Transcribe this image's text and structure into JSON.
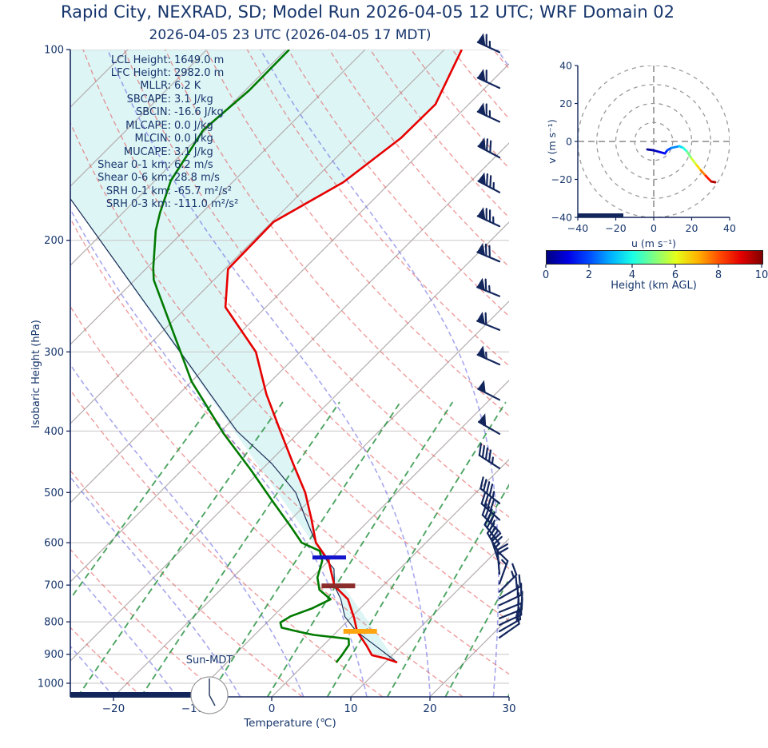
{
  "title": "Rapid City, NEXRAD, SD; Model Run 2026-04-05 12 UTC; WRF Domain 02",
  "subtitle": "2026-04-05 23 UTC  (2026-04-05 17 MDT)",
  "colors": {
    "text_navy": "#16356b",
    "barb_navy": "#13265c",
    "temperature": "#e60000",
    "dewpoint": "#007a00",
    "parcel": "#1b2c55",
    "cin_shade": "#def5f6",
    "isotherm": "#b5aeae",
    "gridline": "#c9c5c5",
    "dry_adiabat": "rgba(226,74,74,0.55)",
    "moist_adiabat": "rgba(95,95,224,0.55)",
    "mixing_line": "rgba(34,142,60,0.8)",
    "el_bar": "#1414cc",
    "lfc_bar": "#8b2c2c",
    "lcl_bar": "#ffa510"
  },
  "chart_data": {
    "type": "line",
    "skewt": {
      "xlabel": "Temperature (℃)",
      "ylabel": "Isobaric Height (hPa)",
      "sun_label": "Sun-MDT",
      "temp_ticks": [
        -20,
        -10,
        0,
        10,
        20,
        30
      ],
      "pressure_ticks": [
        100,
        200,
        300,
        400,
        500,
        600,
        700,
        800,
        900,
        1000
      ],
      "xlim": [
        -25.5,
        30
      ],
      "plim": [
        100,
        1050
      ],
      "stats": [
        {
          "label": "LCL Height:",
          "value": "1649.0 m"
        },
        {
          "label": "LFC Height:",
          "value": "2982.0 m"
        },
        {
          "label": "MLLR:",
          "value": "6.2 K"
        },
        {
          "label": "SBCAPE:",
          "value": "3.1 J/kg"
        },
        {
          "label": "SBCIN:",
          "value": "-16.6 J/kg"
        },
        {
          "label": "MLCAPE:",
          "value": "0.0 J/kg"
        },
        {
          "label": "MLCIN:",
          "value": "0.0 J/kg"
        },
        {
          "label": "MUCAPE:",
          "value": "3.1 J/kg"
        },
        {
          "label": "Shear 0-1 km:",
          "value": "6.2 m/s"
        },
        {
          "label": "Shear 0-6 km:",
          "value": "28.8 m/s"
        },
        {
          "label": "SRH 0-1 km:",
          "value": "-65.7 m²/s²"
        },
        {
          "label": "SRH 0-3 km:",
          "value": "-111.0 m²/s²"
        }
      ],
      "temperature_profile": [
        [
          100,
          -57.8
        ],
        [
          122,
          -54.2
        ],
        [
          138,
          -54.3
        ],
        [
          162,
          -56.0
        ],
        [
          187,
          -59.8
        ],
        [
          222,
          -59.6
        ],
        [
          255,
          -55.1
        ],
        [
          300,
          -45.6
        ],
        [
          350,
          -38.9
        ],
        [
          400,
          -32.5
        ],
        [
          450,
          -26.8
        ],
        [
          500,
          -21.6
        ],
        [
          550,
          -17.5
        ],
        [
          600,
          -13.9
        ],
        [
          641,
          -10.0
        ],
        [
          702,
          -6.1
        ],
        [
          737,
          -2.7
        ],
        [
          788,
          0.4
        ],
        [
          828,
          2.5
        ],
        [
          872,
          5.5
        ],
        [
          903,
          7.4
        ],
        [
          913,
          9.4
        ],
        [
          927,
          11.5
        ]
      ],
      "dewpoint_profile": [
        [
          100,
          -79.6
        ],
        [
          116,
          -79.5
        ],
        [
          134,
          -80.3
        ],
        [
          161,
          -78.0
        ],
        [
          181,
          -75.3
        ],
        [
          193,
          -73.6
        ],
        [
          221,
          -69.2
        ],
        [
          231,
          -67.6
        ],
        [
          334,
          -50.0
        ],
        [
          404,
          -39.3
        ],
        [
          460,
          -31.4
        ],
        [
          518,
          -24.4
        ],
        [
          566,
          -19.1
        ],
        [
          600,
          -15.7
        ],
        [
          618,
          -12.4
        ],
        [
          641,
          -10.8
        ],
        [
          681,
          -9.3
        ],
        [
          712,
          -7.5
        ],
        [
          737,
          -4.9
        ],
        [
          762,
          -6.1
        ],
        [
          784,
          -7.8
        ],
        [
          802,
          -8.3
        ],
        [
          817,
          -7.5
        ],
        [
          828,
          -5.1
        ],
        [
          839,
          -2.5
        ],
        [
          851,
          2.4
        ],
        [
          870,
          3.2
        ],
        [
          903,
          3.6
        ],
        [
          927,
          3.8
        ]
      ],
      "parcel_profile": [
        [
          927,
          11.5
        ],
        [
          872,
          6.6
        ],
        [
          828,
          2.4
        ],
        [
          785,
          -0.9
        ],
        [
          737,
          -3.6
        ],
        [
          702,
          -6.1
        ],
        [
          660,
          -8.3
        ],
        [
          641,
          -10.2
        ],
        [
          600,
          -13.9
        ],
        [
          550,
          -18.2
        ],
        [
          500,
          -22.8
        ],
        [
          450,
          -29.5
        ],
        [
          400,
          -38.0
        ],
        [
          350,
          -46.0
        ],
        [
          319,
          -51.5
        ],
        [
          172,
          -88.4
        ]
      ],
      "levels": [
        {
          "name": "EL",
          "pressure": 634,
          "temp": -10.3,
          "color_key": "el_bar"
        },
        {
          "name": "LFC",
          "pressure": 702,
          "temp": -5.6,
          "color_key": "lfc_bar"
        },
        {
          "name": "LCL",
          "pressure": 828,
          "temp": 2.9,
          "color_key": "lcl_bar"
        }
      ],
      "wind_barbs": [
        [
          101,
          65,
          295
        ],
        [
          115,
          60,
          295
        ],
        [
          130,
          65,
          295
        ],
        [
          148,
          70,
          298
        ],
        [
          168,
          75,
          298
        ],
        [
          190,
          75,
          295
        ],
        [
          216,
          70,
          293
        ],
        [
          245,
          65,
          292
        ],
        [
          277,
          60,
          292
        ],
        [
          314,
          55,
          294
        ],
        [
          357,
          50,
          297
        ],
        [
          404,
          50,
          300
        ],
        [
          458,
          45,
          303
        ],
        [
          520,
          45,
          308
        ],
        [
          552,
          40,
          312
        ],
        [
          577,
          40,
          315
        ],
        [
          602,
          35,
          322
        ],
        [
          625,
          30,
          330
        ],
        [
          648,
          25,
          342
        ],
        [
          672,
          20,
          355
        ],
        [
          696,
          18,
          20
        ],
        [
          717,
          18,
          45
        ],
        [
          735,
          20,
          60
        ],
        [
          753,
          22,
          65
        ],
        [
          772,
          22,
          68
        ],
        [
          790,
          20,
          68
        ],
        [
          809,
          18,
          65
        ],
        [
          828,
          15,
          60
        ],
        [
          847,
          12,
          55
        ]
      ],
      "surface_pressure": 927
    },
    "hodograph": {
      "xlabel": "u (m s⁻¹)",
      "ylabel": "v (m s⁻¹)",
      "u_ticks": [
        -40,
        -20,
        0,
        20,
        40
      ],
      "v_ticks": [
        -40,
        -20,
        0,
        20,
        40
      ],
      "ring_radii": [
        10,
        20,
        30,
        40
      ],
      "bar": {
        "u_from": -40,
        "u_to": -16
      },
      "trace": [
        [
          -3.4,
          -4.2,
          0.0
        ],
        [
          -0.4,
          -4.6,
          0.4
        ],
        [
          2.9,
          -5.5,
          0.8
        ],
        [
          5.9,
          -6.3,
          1.2
        ],
        [
          7.2,
          -4.6,
          1.7
        ],
        [
          9.3,
          -3.4,
          2.2
        ],
        [
          13.5,
          -2.5,
          3.0
        ],
        [
          15.6,
          -3.4,
          3.8
        ],
        [
          17.7,
          -5.5,
          4.5
        ],
        [
          19.8,
          -8.8,
          5.3
        ],
        [
          22.7,
          -12.6,
          6.2
        ],
        [
          24.8,
          -15.2,
          7.0
        ],
        [
          27.4,
          -18.1,
          8.0
        ],
        [
          30.3,
          -21.1,
          9.0
        ],
        [
          32.4,
          -21.5,
          10.0
        ]
      ]
    },
    "colorbar": {
      "label": "Height (km AGL)",
      "ticks": [
        0,
        2,
        4,
        6,
        8,
        10
      ],
      "min": 0,
      "max": 10
    }
  }
}
